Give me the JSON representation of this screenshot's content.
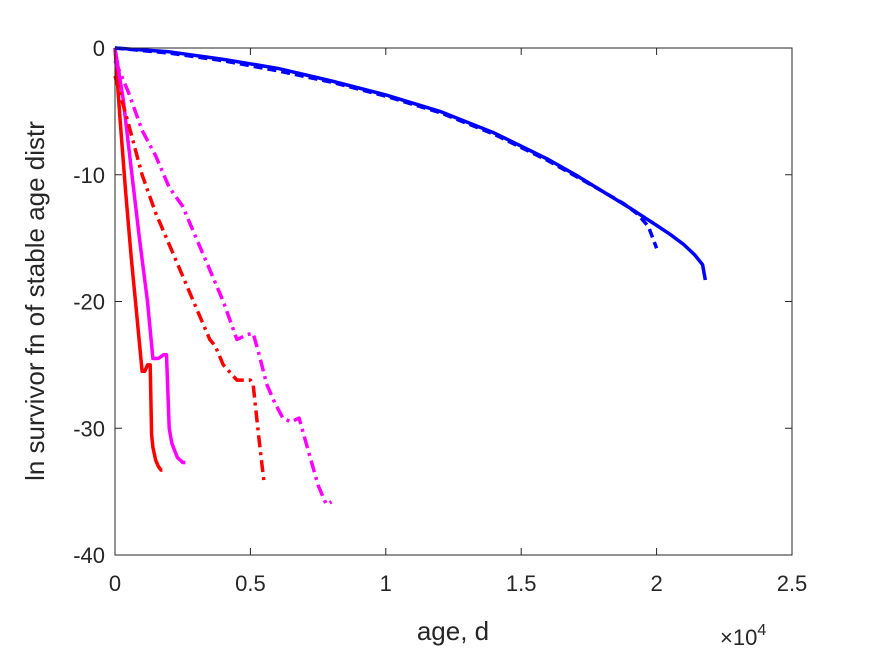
{
  "chart_data": {
    "type": "line",
    "title": "",
    "xlabel": "age, d",
    "ylabel": "ln survivor fn of stable age distr",
    "x_exponent_label": "×10",
    "x_exponent_power": "4",
    "xlim": [
      0,
      25000
    ],
    "ylim": [
      -40,
      0
    ],
    "xticks": [
      0,
      5000,
      10000,
      15000,
      20000,
      25000
    ],
    "xtick_labels": [
      "0",
      "0.5",
      "1",
      "1.5",
      "2",
      "2.5"
    ],
    "yticks": [
      0,
      -10,
      -20,
      -30,
      -40
    ],
    "ytick_labels": [
      "0",
      "-10",
      "-20",
      "-30",
      "-40"
    ],
    "grid": false,
    "legend": "none",
    "series": [
      {
        "color": "#ff0000",
        "style": "solid",
        "x": [
          0,
          200,
          400,
          600,
          800,
          1000,
          1100,
          1200,
          1300,
          1350,
          1400,
          1500,
          1600,
          1700,
          1750
        ],
        "y": [
          0,
          -6,
          -11.5,
          -16.5,
          -21,
          -25.5,
          -25.5,
          -25,
          -25,
          -30.5,
          -31.5,
          -32.5,
          -33,
          -33.3,
          -33.3
        ]
      },
      {
        "color": "#ff00ff",
        "style": "solid",
        "x": [
          0,
          300,
          600,
          900,
          1200,
          1400,
          1600,
          1800,
          1900,
          2000,
          2100,
          2300,
          2500,
          2600
        ],
        "y": [
          0,
          -4,
          -9.5,
          -15,
          -20,
          -24.5,
          -24.5,
          -24.2,
          -24.2,
          -30,
          -31.2,
          -32.3,
          -32.7,
          -32.7
        ]
      },
      {
        "color": "#ff0000",
        "style": "dashdot",
        "x": [
          0,
          500,
          1000,
          1500,
          2000,
          2500,
          3000,
          3500,
          3700,
          4000,
          4500,
          5000,
          5100,
          5300,
          5500
        ],
        "y": [
          -2.2,
          -6,
          -10,
          -13,
          -15.5,
          -18,
          -20.5,
          -23,
          -23.5,
          -25,
          -26.2,
          -26.2,
          -26.5,
          -30.5,
          -34.2
        ]
      },
      {
        "color": "#ff00ff",
        "style": "dashdot",
        "x": [
          0,
          500,
          1000,
          1500,
          2000,
          2500,
          3000,
          3500,
          4000,
          4500,
          4900,
          5100,
          5300,
          5600,
          5900,
          6200,
          6500,
          6800,
          7100,
          7500,
          7800,
          8000
        ],
        "y": [
          -1,
          -3.5,
          -6.5,
          -8.5,
          -11,
          -12.5,
          -15,
          -17.5,
          -20,
          -23,
          -22.6,
          -22.5,
          -24,
          -26.5,
          -28,
          -29.2,
          -29.5,
          -29.2,
          -31.5,
          -34.5,
          -36,
          -35.8
        ]
      },
      {
        "color": "#0000ff",
        "style": "solid",
        "x": [
          0,
          2000,
          4000,
          6000,
          8000,
          10000,
          12000,
          14000,
          16000,
          17000,
          18000,
          19000,
          20000,
          20500,
          21000,
          21400,
          21700,
          21800
        ],
        "y": [
          0,
          -0.3,
          -0.9,
          -1.6,
          -2.6,
          -3.7,
          -5,
          -6.7,
          -8.8,
          -10,
          -11.3,
          -12.6,
          -14,
          -14.7,
          -15.5,
          -16.3,
          -17.1,
          -18.3
        ]
      },
      {
        "color": "#0000ff",
        "style": "dashed",
        "x": [
          0,
          2000,
          4000,
          6000,
          8000,
          10000,
          12000,
          14000,
          16000,
          17000,
          18000,
          18800,
          19300,
          19700,
          20000
        ],
        "y": [
          0,
          -0.4,
          -1.0,
          -1.8,
          -2.7,
          -3.8,
          -5.1,
          -6.8,
          -8.9,
          -10.1,
          -11.3,
          -12.3,
          -13.1,
          -14.1,
          -15.8
        ]
      }
    ]
  }
}
